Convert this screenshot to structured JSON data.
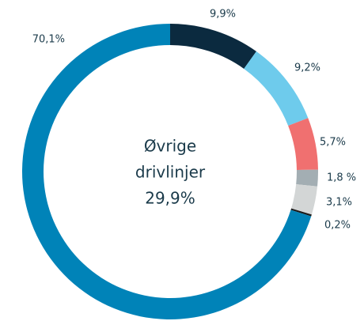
{
  "chart_data": {
    "type": "donut",
    "center_text": [
      "Øvrige",
      "drivlinjer",
      "29,9%"
    ],
    "categories": [
      null,
      null,
      null,
      null,
      null,
      null,
      null
    ],
    "values": [
      9.9,
      9.2,
      5.7,
      1.8,
      3.1,
      0.2,
      70.1
    ],
    "value_labels": [
      "9,9%",
      "9,2%",
      "5,7%",
      "1,8 %",
      "3,1%",
      "0,2%",
      "70,1%"
    ],
    "colors": [
      "#0b2a3f",
      "#6ecbec",
      "#f07070",
      "#a3aeb3",
      "#d3d6d6",
      "#1a1a1a",
      "#0083b8"
    ]
  }
}
